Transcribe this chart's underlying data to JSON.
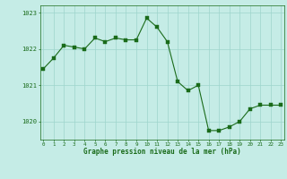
{
  "x": [
    0,
    1,
    2,
    3,
    4,
    5,
    6,
    7,
    8,
    9,
    10,
    11,
    12,
    13,
    14,
    15,
    16,
    17,
    18,
    19,
    20,
    21,
    22,
    23
  ],
  "y": [
    1021.45,
    1021.75,
    1022.1,
    1022.05,
    1022.0,
    1022.3,
    1022.2,
    1022.3,
    1022.25,
    1022.25,
    1022.85,
    1022.6,
    1022.2,
    1021.1,
    1020.85,
    1021.0,
    1019.75,
    1019.75,
    1019.85,
    1020.0,
    1020.35,
    1020.45,
    1020.45,
    1020.45
  ],
  "line_color": "#1a6b1a",
  "marker_color": "#1a6b1a",
  "bg_color": "#c5ece6",
  "grid_color": "#9dd4cc",
  "xlabel": "Graphe pression niveau de la mer (hPa)",
  "xlabel_color": "#1a6b1a",
  "tick_color": "#1a6b1a",
  "ylim": [
    1019.5,
    1023.2
  ],
  "yticks": [
    1020,
    1021,
    1022,
    1023
  ],
  "xticks": [
    0,
    1,
    2,
    3,
    4,
    5,
    6,
    7,
    8,
    9,
    10,
    11,
    12,
    13,
    14,
    15,
    16,
    17,
    18,
    19,
    20,
    21,
    22,
    23
  ],
  "xlim": [
    -0.3,
    23.3
  ]
}
